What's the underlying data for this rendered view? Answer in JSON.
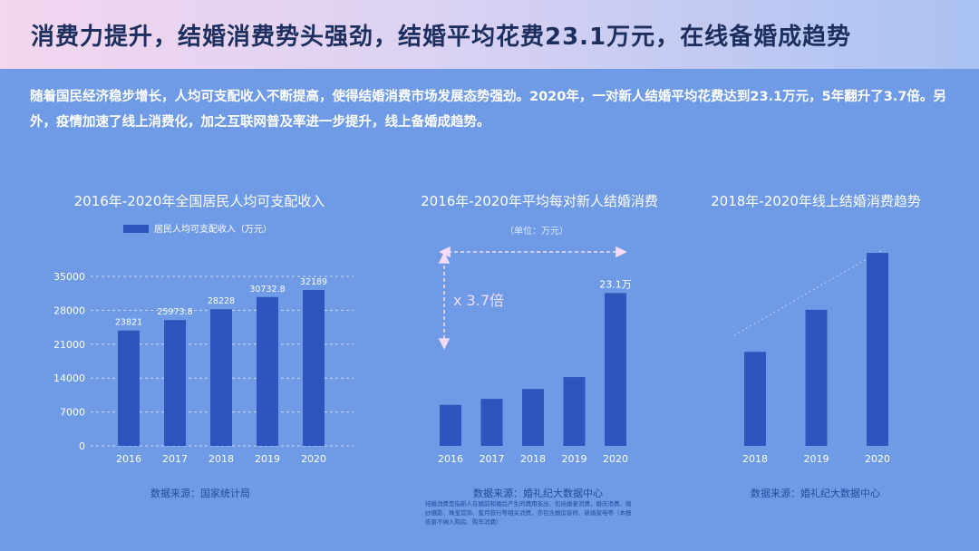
{
  "header": {
    "title": "消费力提升，结婚消费势头强劲，结婚平均花费23.1万元，在线备婚成趋势"
  },
  "intro": {
    "text": "随着国民经济稳步增长，人均可支配收入不断提高，使得结婚消费市场发展态势强劲。2020年，一对新人结婚平均花费达到23.1万元，5年翻升了3.7倍。另外，疫情加速了线上消费化，加之互联网普及率进一步提升，线上备婚成趋势。"
  },
  "colors": {
    "background": "#6e9ae6",
    "bar": "#2e55bd",
    "source_text": "#244a9e",
    "title_text": "#1c2f5e",
    "annotation": "#f3dcf3"
  },
  "chart_data": [
    {
      "type": "bar",
      "title": "2016年-2020年全国居民人均可支配收入",
      "legend": "居民人均可支配收入（万元）",
      "categories": [
        "2016",
        "2017",
        "2018",
        "2019",
        "2020"
      ],
      "values": [
        23821,
        25973.8,
        28228,
        30732.8,
        32189
      ],
      "value_labels": [
        "23821",
        "25973.8",
        "28228",
        "30732.8",
        "32189"
      ],
      "yticks": [
        "0",
        "7000",
        "14000",
        "21000",
        "28000",
        "35000"
      ],
      "ylim": [
        0,
        35000
      ],
      "grid": true,
      "source": "数据来源：国家统计局"
    },
    {
      "type": "bar",
      "title": "2016年-2020年平均每对新人结婚消费",
      "subtitle": "（单位：万元）",
      "categories": [
        "2016",
        "2017",
        "2018",
        "2019",
        "2020"
      ],
      "values": [
        6.2,
        7.1,
        8.6,
        10.4,
        23.1
      ],
      "value_labels": [
        "",
        "",
        "",
        "",
        "23.1万"
      ],
      "annotation": "x 3.7倍",
      "source": "数据来源：婚礼纪大数据中心",
      "footnote": "结婚消费是指新人在婚前和婚后产生的费用支出，包括婚宴消费、婚庆消费、婚纱摄影、珠宝首饰、蜜月旅行等相关消费，亦包含婚房装修、新婚家电等（本报告暂不纳入购房、购车消费）"
    },
    {
      "type": "bar",
      "title": "2018年-2020年线上结婚消费趋势",
      "categories": [
        "2018",
        "2019",
        "2020"
      ],
      "values": [
        38,
        55,
        78
      ],
      "trend_line": true,
      "source": "数据来源：婚礼纪大数据中心"
    }
  ]
}
